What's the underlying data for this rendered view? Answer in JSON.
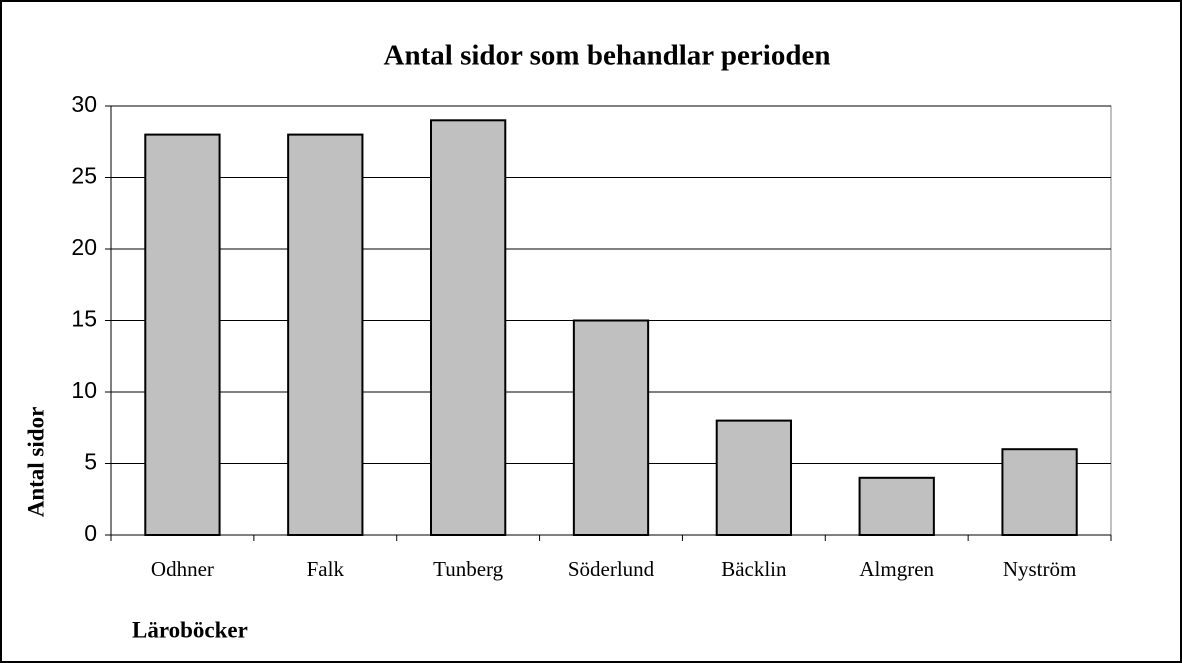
{
  "chart_data": {
    "type": "bar",
    "title": "Antal sidor som behandlar perioden",
    "x_label": "Läroböcker",
    "y_label": "Antal sidor",
    "categories": [
      "Odhner",
      "Falk",
      "Tunberg",
      "Söderlund",
      "Bäcklin",
      "Almgren",
      "Nyström"
    ],
    "values": [
      28,
      28,
      29,
      15,
      8,
      4,
      6
    ],
    "color": "#c0c0c0",
    "ylim": [
      0,
      30
    ],
    "yticks": [
      0,
      5,
      10,
      15,
      20,
      25,
      30
    ],
    "grid": true
  }
}
